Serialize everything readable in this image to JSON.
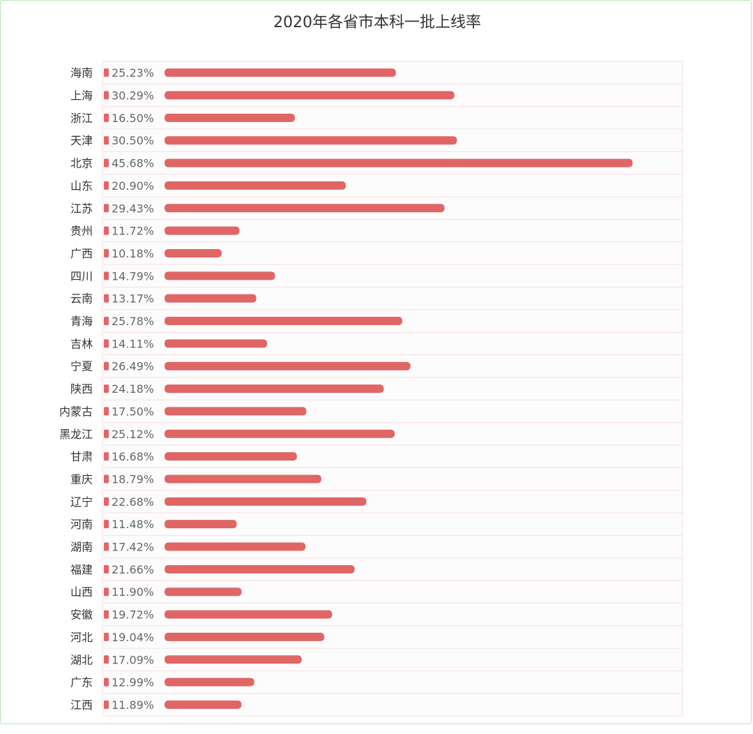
{
  "chart_data": {
    "type": "bar",
    "orientation": "horizontal",
    "title": "2020年各省市本科一批上线率",
    "xlabel": "",
    "ylabel": "",
    "xlim": [
      0,
      50
    ],
    "grid": true,
    "legend": "none",
    "bar_color": "#e06666",
    "grid_color": "#f7dede",
    "categories": [
      "海南",
      "上海",
      "浙江",
      "天津",
      "北京",
      "山东",
      "江苏",
      "贵州",
      "广西",
      "四川",
      "云南",
      "青海",
      "吉林",
      "宁夏",
      "陕西",
      "内蒙古",
      "黑龙江",
      "甘肃",
      "重庆",
      "辽宁",
      "河南",
      "湖南",
      "福建",
      "山西",
      "安徽",
      "河北",
      "湖北",
      "广东",
      "江西"
    ],
    "values": [
      25.23,
      30.29,
      16.5,
      30.5,
      45.68,
      20.9,
      29.43,
      11.72,
      10.18,
      14.79,
      13.17,
      25.78,
      14.11,
      26.49,
      24.18,
      17.5,
      25.12,
      16.68,
      18.79,
      22.68,
      11.48,
      17.42,
      21.66,
      11.9,
      19.72,
      19.04,
      17.09,
      12.99,
      11.89
    ],
    "value_labels": [
      "25.23%",
      "30.29%",
      "16.50%",
      "30.50%",
      "45.68%",
      "20.90%",
      "29.43%",
      "11.72%",
      "10.18%",
      "14.79%",
      "13.17%",
      "25.78%",
      "14.11%",
      "26.49%",
      "24.18%",
      "17.50%",
      "25.12%",
      "16.68%",
      "18.79%",
      "22.68%",
      "11.48%",
      "17.42%",
      "21.66%",
      "11.90%",
      "19.72%",
      "19.04%",
      "17.09%",
      "12.99%",
      "11.89%"
    ]
  }
}
